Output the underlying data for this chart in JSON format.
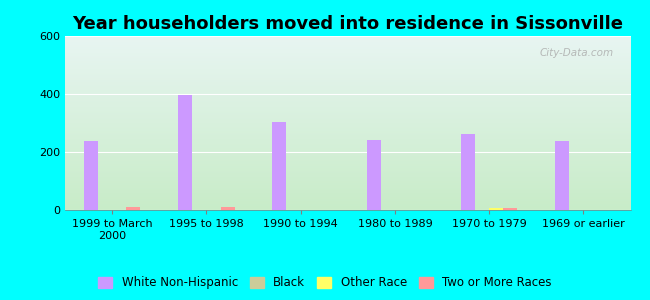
{
  "title": "Year householders moved into residence in Sissonville",
  "categories": [
    "1999 to March\n2000",
    "1995 to 1998",
    "1990 to 1994",
    "1980 to 1989",
    "1970 to 1979",
    "1969 or earlier"
  ],
  "series": {
    "White Non-Hispanic": [
      237,
      395,
      305,
      240,
      263,
      237
    ],
    "Black": [
      0,
      0,
      0,
      0,
      0,
      0
    ],
    "Other Race": [
      0,
      0,
      0,
      0,
      8,
      0
    ],
    "Two or More Races": [
      10,
      10,
      0,
      0,
      8,
      0
    ]
  },
  "colors": {
    "White Non-Hispanic": "#cc99ff",
    "Black": "#cccc99",
    "Other Race": "#ffff66",
    "Two or More Races": "#ff9999"
  },
  "ylim": [
    0,
    600
  ],
  "yticks": [
    0,
    200,
    400,
    600
  ],
  "background_color_top": "#e8f5f2",
  "background_color_bottom": "#c8ecc8",
  "outer_background": "#00ffff",
  "bar_width": 0.15,
  "title_fontsize": 13,
  "legend_fontsize": 8.5,
  "tick_fontsize": 8
}
